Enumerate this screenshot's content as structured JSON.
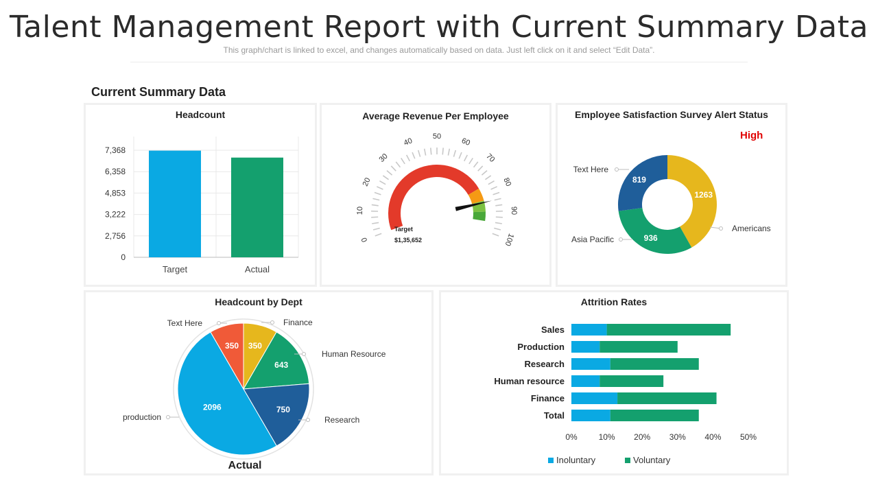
{
  "header": {
    "title": "Talent Management Report with Current Summary Data",
    "subtitle": "This graph/chart is linked to excel, and changes automatically based on data. Just left click on it and select “Edit Data”.",
    "section_title": "Current Summary Data"
  },
  "colors": {
    "blue": "#0aa9e3",
    "green": "#14a06e",
    "navy": "#1f5e9a",
    "yellow": "#e6b71d",
    "orange": "#f05a38",
    "red": "#e33a2a",
    "alert": "#e00000"
  },
  "headcount": {
    "title": "Headcount",
    "chart_data": {
      "type": "bar",
      "categories": [
        "Target",
        "Actual"
      ],
      "values": [
        6900,
        6450
      ],
      "ytick_labels": [
        "7,368",
        "6,358",
        "4,853",
        "3,222",
        "2,756",
        "0"
      ]
    }
  },
  "revenue": {
    "title": "Average Revenue Per Employee",
    "chart_data": {
      "type": "gauge",
      "min": 0,
      "max": 100,
      "ticks": [
        "0",
        "10",
        "20",
        "30",
        "40",
        "50",
        "60",
        "70",
        "80",
        "90",
        "100"
      ],
      "value": 77,
      "target_label": "Target",
      "target_value": "$1,35,652"
    }
  },
  "satisfaction": {
    "title": "Employee Satisfaction Survey Alert Status",
    "status": "High",
    "chart_data": {
      "type": "pie",
      "labels": [
        "Americans",
        "Asia Pacific",
        "Text Here"
      ],
      "values": [
        1263,
        936,
        819
      ]
    }
  },
  "dept": {
    "title": "Headcount by Dept",
    "footer": "Actual",
    "chart_data": {
      "type": "pie",
      "labels": [
        "Finance",
        "Human Resource",
        "Research",
        "production",
        "Text Here"
      ],
      "values": [
        350,
        643,
        750,
        2096,
        350
      ]
    }
  },
  "attrition": {
    "title": "Attrition Rates",
    "chart_data": {
      "type": "bar",
      "orientation": "horizontal",
      "stacked": true,
      "categories": [
        "Sales",
        "Production",
        "Research",
        "Human resource",
        "Finance",
        "Total"
      ],
      "series": [
        {
          "name": "Inoluntary",
          "values": [
            10,
            8,
            11,
            8,
            13,
            11
          ]
        },
        {
          "name": "Voluntary",
          "values": [
            35,
            22,
            25,
            18,
            28,
            25
          ]
        }
      ],
      "xlim": [
        0,
        50
      ],
      "xtick_labels": [
        "0%",
        "10%",
        "20%",
        "30%",
        "40%",
        "50%"
      ],
      "legend": "bottom"
    }
  }
}
